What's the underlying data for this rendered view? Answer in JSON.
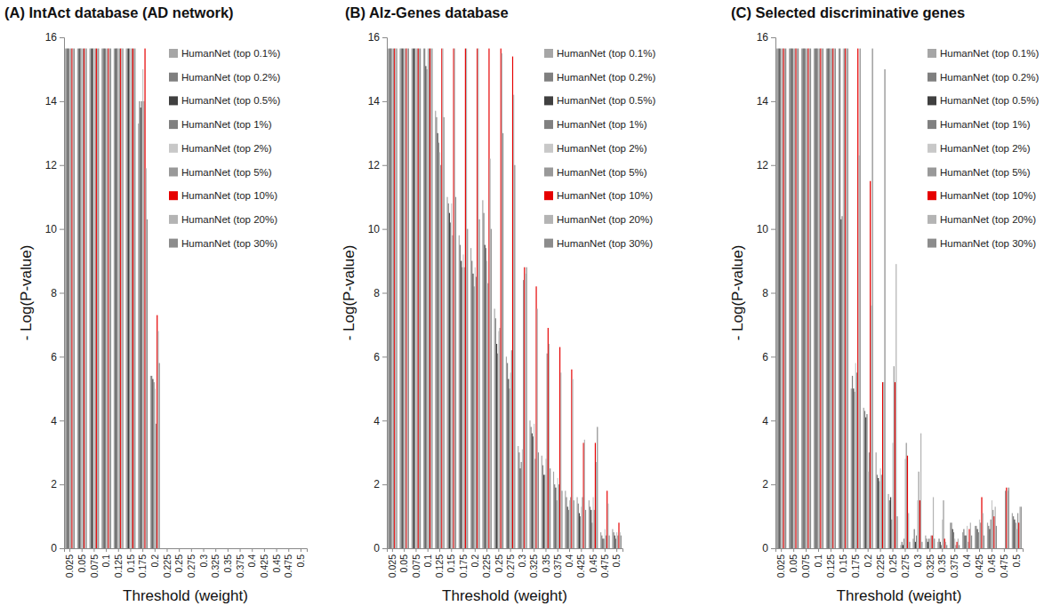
{
  "chart_data": [
    {
      "type": "bar",
      "title": "(A) IntAct database (AD network)",
      "x_label": "Threshold  (weight)",
      "y_label": "- Log(P-value)",
      "categories": [
        "0.025",
        "0.05",
        "0.075",
        "0.1",
        "0.125",
        "0.15",
        "0.175",
        "0.2",
        "0.225",
        "0.25",
        "0.275",
        "0.3",
        "0.325",
        "0.35",
        "0.375",
        "0.4",
        "0.425",
        "0.45",
        "0.475",
        "0.5"
      ],
      "ylim": [
        0,
        16
      ],
      "yticks": [
        0,
        2,
        4,
        6,
        8,
        10,
        12,
        14,
        16
      ],
      "legend": "top-right",
      "series": [
        {
          "name": "HumanNet (top 0.1%)",
          "color": "#a6a6a6",
          "values": [
            15.65,
            15.65,
            15.65,
            15.65,
            15.65,
            15.65,
            13.3,
            5.4,
            0,
            0,
            0,
            0,
            0,
            0,
            0,
            0,
            0,
            0,
            0,
            0
          ]
        },
        {
          "name": "HumanNet (top 0.2%)",
          "color": "#7f7f7f",
          "values": [
            15.65,
            15.65,
            15.65,
            15.65,
            15.65,
            15.65,
            14.0,
            5.4,
            0,
            0,
            0,
            0,
            0,
            0,
            0,
            0,
            0,
            0,
            0,
            0
          ]
        },
        {
          "name": "HumanNet (top 0.5%)",
          "color": "#404040",
          "values": [
            15.65,
            15.65,
            15.65,
            15.65,
            15.65,
            15.65,
            13.8,
            5.3,
            0,
            0,
            0,
            0,
            0,
            0,
            0,
            0,
            0,
            0,
            0,
            0
          ]
        },
        {
          "name": "HumanNet (top 1%)",
          "color": "#808080",
          "values": [
            15.65,
            15.65,
            15.65,
            15.65,
            15.65,
            15.65,
            14.0,
            5.2,
            0,
            0,
            0,
            0,
            0,
            0,
            0,
            0,
            0,
            0,
            0,
            0
          ]
        },
        {
          "name": "HumanNet (top 2%)",
          "color": "#c8c8c8",
          "values": [
            15.65,
            15.65,
            15.65,
            15.65,
            15.65,
            15.65,
            15.0,
            5.0,
            0,
            0,
            0,
            0,
            0,
            0,
            0,
            0,
            0,
            0,
            0,
            0
          ]
        },
        {
          "name": "HumanNet (top 5%)",
          "color": "#999999",
          "values": [
            15.65,
            15.65,
            15.65,
            15.65,
            15.65,
            15.65,
            14.0,
            3.9,
            0,
            0,
            0,
            0,
            0,
            0,
            0,
            0,
            0,
            0,
            0,
            0
          ]
        },
        {
          "name": "HumanNet (top 10%)",
          "color": "#e60000",
          "values": [
            15.65,
            15.65,
            15.65,
            15.65,
            15.65,
            15.65,
            15.65,
            7.3,
            0,
            0,
            0,
            0,
            0,
            0,
            0,
            0,
            0,
            0,
            0,
            0
          ]
        },
        {
          "name": "HumanNet (top 20%)",
          "color": "#b4b4b4",
          "values": [
            15.65,
            15.65,
            15.65,
            15.65,
            15.65,
            15.65,
            11.9,
            6.8,
            0,
            0,
            0,
            0,
            0,
            0,
            0,
            0,
            0,
            0,
            0,
            0
          ]
        },
        {
          "name": "HumanNet (top 30%)",
          "color": "#8c8c8c",
          "values": [
            15.65,
            15.65,
            15.65,
            15.65,
            15.65,
            15.65,
            10.3,
            5.8,
            0,
            0,
            0,
            0,
            0,
            0,
            0,
            0,
            0,
            0,
            0,
            0
          ]
        }
      ]
    },
    {
      "type": "bar",
      "title": "(B) Alz-Genes database",
      "x_label": "Threshold  (weight)",
      "y_label": "- Log(P-value)",
      "categories": [
        "0.025",
        "0.05",
        "0.075",
        "0.1",
        "0.125",
        "0.15",
        "0.175",
        "0.2",
        "0.225",
        "0.25",
        "0.275",
        "0.3",
        "0.325",
        "0.35",
        "0.375",
        "0.4",
        "0.425",
        "0.45",
        "0.475",
        "0.5"
      ],
      "ylim": [
        0,
        16
      ],
      "yticks": [
        0,
        2,
        4,
        6,
        8,
        10,
        12,
        14,
        16
      ],
      "legend": "top-right",
      "series": [
        {
          "name": "HumanNet (top 0.1%)",
          "color": "#a6a6a6",
          "values": [
            15.65,
            15.65,
            15.65,
            15.65,
            13.7,
            11.0,
            9.8,
            9.4,
            10.9,
            7.5,
            6.0,
            3.2,
            4.0,
            2.9,
            2.4,
            1.8,
            1.6,
            1.5,
            0.5,
            0.6
          ]
        },
        {
          "name": "HumanNet (top 0.2%)",
          "color": "#7f7f7f",
          "values": [
            15.65,
            15.65,
            15.65,
            15.65,
            13.5,
            10.8,
            9.5,
            9.0,
            10.5,
            7.2,
            5.8,
            3.0,
            3.8,
            2.6,
            2.0,
            1.6,
            1.4,
            1.3,
            0.4,
            0.5
          ]
        },
        {
          "name": "HumanNet (top 0.5%)",
          "color": "#404040",
          "values": [
            15.65,
            15.65,
            15.65,
            15.1,
            13.0,
            10.5,
            9.0,
            8.6,
            9.5,
            6.4,
            5.3,
            2.5,
            3.6,
            2.3,
            1.9,
            1.3,
            1.1,
            1.2,
            0.3,
            0.4
          ]
        },
        {
          "name": "HumanNet (top 1%)",
          "color": "#808080",
          "values": [
            15.65,
            15.65,
            15.65,
            15.0,
            12.7,
            10.2,
            8.8,
            8.2,
            9.4,
            6.1,
            5.0,
            2.7,
            3.5,
            2.3,
            1.5,
            1.2,
            1.0,
            0.8,
            0.3,
            0.3
          ]
        },
        {
          "name": "HumanNet (top 2%)",
          "color": "#c8c8c8",
          "values": [
            15.65,
            15.65,
            15.65,
            15.65,
            12.4,
            10.8,
            9.2,
            8.8,
            9.0,
            6.8,
            5.5,
            3.1,
            3.9,
            2.8,
            2.2,
            1.5,
            1.3,
            1.6,
            0.6,
            0.5
          ]
        },
        {
          "name": "HumanNet (top 5%)",
          "color": "#999999",
          "values": [
            15.65,
            15.65,
            15.65,
            15.65,
            12.0,
            9.8,
            8.8,
            8.5,
            8.3,
            6.9,
            6.2,
            8.4,
            2.8,
            6.1,
            2.0,
            1.6,
            1.6,
            1.2,
            0.4,
            0.4
          ]
        },
        {
          "name": "HumanNet (top 10%)",
          "color": "#e60000",
          "values": [
            15.65,
            15.65,
            15.65,
            15.65,
            15.65,
            15.65,
            15.65,
            15.65,
            15.65,
            15.65,
            15.4,
            8.8,
            8.2,
            6.9,
            6.3,
            5.6,
            3.3,
            3.3,
            1.8,
            0.8
          ]
        },
        {
          "name": "HumanNet (top 20%)",
          "color": "#b4b4b4",
          "values": [
            15.65,
            15.65,
            15.65,
            15.65,
            15.65,
            15.65,
            15.65,
            15.65,
            12.2,
            15.5,
            14.2,
            8.6,
            7.5,
            6.4,
            5.5,
            5.3,
            3.4,
            2.7,
            1.4,
            0.5
          ]
        },
        {
          "name": "HumanNet (top 30%)",
          "color": "#8c8c8c",
          "values": [
            15.65,
            15.65,
            15.65,
            15.65,
            13.5,
            11.0,
            10.0,
            10.3,
            10.0,
            13.0,
            12.0,
            8.8,
            3.0,
            2.5,
            1.8,
            1.5,
            1.2,
            3.8,
            0.4,
            0.4
          ]
        }
      ]
    },
    {
      "type": "bar",
      "title": "(C) Selected discriminative genes",
      "x_label": "Threshold  (weight)",
      "y_label": "- Log(P-value)",
      "categories": [
        "0.025",
        "0.05",
        "0.075",
        "0.1",
        "0.125",
        "0.15",
        "0.175",
        "0.2",
        "0.225",
        "0.25",
        "0.275",
        "0.3",
        "0.325",
        "0.35",
        "0.375",
        "0.4",
        "0.425",
        "0.45",
        "0.475",
        "0.5"
      ],
      "ylim": [
        0,
        16
      ],
      "yticks": [
        0,
        2,
        4,
        6,
        8,
        10,
        12,
        14,
        16
      ],
      "legend": "top-right",
      "series": [
        {
          "name": "HumanNet (top 0.1%)",
          "color": "#a6a6a6",
          "values": [
            15.65,
            15.65,
            15.65,
            15.65,
            15.65,
            15.65,
            5.0,
            4.4,
            3.0,
            1.7,
            0.1,
            0.3,
            0.4,
            0.2,
            0.8,
            0.5,
            0.7,
            0.8,
            0,
            1.1
          ]
        },
        {
          "name": "HumanNet (top 0.2%)",
          "color": "#7f7f7f",
          "values": [
            15.65,
            15.65,
            15.65,
            15.65,
            15.65,
            15.65,
            5.4,
            4.3,
            2.3,
            1.5,
            0.2,
            0.6,
            0.3,
            0.3,
            0.8,
            0.6,
            0.7,
            0.7,
            0,
            1.0
          ]
        },
        {
          "name": "HumanNet (top 0.5%)",
          "color": "#404040",
          "values": [
            15.65,
            15.65,
            15.65,
            15.65,
            15.65,
            10.3,
            5.0,
            4.1,
            2.2,
            1.6,
            0.1,
            0.2,
            0.2,
            0.2,
            0.6,
            0.4,
            0.6,
            0.6,
            0,
            0.9
          ]
        },
        {
          "name": "HumanNet (top 1%)",
          "color": "#808080",
          "values": [
            15.65,
            15.65,
            15.65,
            15.65,
            15.65,
            10.4,
            4.9,
            4.2,
            2.1,
            0.9,
            0.3,
            0.4,
            0.3,
            0.1,
            0.5,
            0.4,
            0.5,
            0.9,
            0,
            0.8
          ]
        },
        {
          "name": "HumanNet (top 2%)",
          "color": "#c8c8c8",
          "values": [
            15.65,
            15.65,
            15.65,
            15.65,
            15.65,
            15.65,
            5.8,
            2.4,
            2.5,
            3.3,
            2.8,
            1.5,
            0.3,
            0.9,
            0.3,
            0.7,
            0.9,
            1.5,
            0,
            0.6
          ]
        },
        {
          "name": "HumanNet (top 5%)",
          "color": "#999999",
          "values": [
            15.65,
            15.65,
            15.65,
            15.65,
            15.65,
            15.65,
            5.5,
            3.0,
            2.3,
            5.7,
            3.3,
            2.4,
            0.4,
            1.5,
            0.1,
            0.2,
            0.8,
            1.2,
            1.8,
            1.1
          ]
        },
        {
          "name": "HumanNet (top 10%)",
          "color": "#e60000",
          "values": [
            15.65,
            15.65,
            15.65,
            15.65,
            15.65,
            15.65,
            15.65,
            11.5,
            5.2,
            5.2,
            2.9,
            1.5,
            0.4,
            0.3,
            0.2,
            0.6,
            1.6,
            1.0,
            1.9,
            0.8
          ]
        },
        {
          "name": "HumanNet (top 20%)",
          "color": "#b4b4b4",
          "values": [
            15.65,
            15.65,
            15.65,
            15.65,
            15.65,
            15.65,
            12.3,
            7.6,
            5.2,
            8.9,
            1.1,
            3.6,
            1.6,
            0.2,
            0.3,
            0.8,
            1.1,
            1.3,
            1.8,
            1.3
          ]
        },
        {
          "name": "HumanNet (top 30%)",
          "color": "#8c8c8c",
          "values": [
            15.65,
            15.65,
            15.65,
            15.65,
            15.65,
            15.65,
            15.65,
            15.65,
            15.0,
            1.0,
            0.2,
            0.2,
            0.3,
            0.1,
            0.1,
            0.4,
            0.4,
            0.7,
            1.9,
            1.3
          ]
        }
      ]
    }
  ]
}
